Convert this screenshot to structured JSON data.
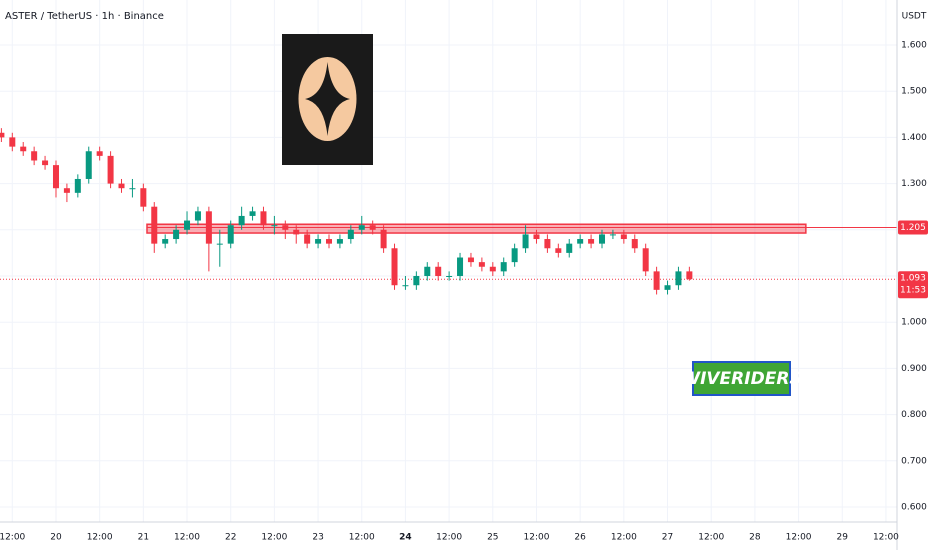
{
  "chart_data": {
    "type": "candlestick",
    "title": "ASTER / TetherUS · 1h · Binance",
    "currency": "USDT",
    "watermark": "WIVERIDERS",
    "up_color": "#089981",
    "down_color": "#f23645",
    "xlim": [
      -15.38,
      231.04
    ],
    "ylim": [
      0.5675,
      1.6974
    ],
    "xticks": [
      {
        "value": -12,
        "label": "12:00"
      },
      {
        "value": 0,
        "label": "20"
      },
      {
        "value": 12,
        "label": "12:00"
      },
      {
        "value": 24,
        "label": "21"
      },
      {
        "value": 36,
        "label": "12:00"
      },
      {
        "value": 48,
        "label": "22"
      },
      {
        "value": 60,
        "label": "12:00"
      },
      {
        "value": 72,
        "label": "23"
      },
      {
        "value": 84,
        "label": "12:00"
      },
      {
        "value": 96,
        "label": "24"
      },
      {
        "value": 108,
        "label": "12:00"
      },
      {
        "value": 120,
        "label": "25"
      },
      {
        "value": 132,
        "label": "12:00"
      },
      {
        "value": 144,
        "label": "26"
      },
      {
        "value": 156,
        "label": "12:00"
      },
      {
        "value": 168,
        "label": "27"
      },
      {
        "value": 180,
        "label": "12:00"
      },
      {
        "value": 192,
        "label": "28"
      },
      {
        "value": 204,
        "label": "12:00"
      },
      {
        "value": 216,
        "label": "29"
      },
      {
        "value": 228,
        "label": "12:00"
      }
    ],
    "yticks": [
      {
        "value": 0.6,
        "label": "0.600"
      },
      {
        "value": 0.7,
        "label": "0.700"
      },
      {
        "value": 0.8,
        "label": "0.800"
      },
      {
        "value": 0.9,
        "label": "0.900"
      },
      {
        "value": 1.0,
        "label": "1.000"
      },
      {
        "value": 1.1,
        "label": "1.100"
      },
      {
        "value": 1.2,
        "label": "1.200"
      },
      {
        "value": 1.3,
        "label": "1.300"
      },
      {
        "value": 1.4,
        "label": "1.400"
      },
      {
        "value": 1.5,
        "label": "1.500"
      },
      {
        "value": 1.6,
        "label": "1.600"
      }
    ],
    "x": [
      -15,
      -12,
      -9,
      -6,
      -3,
      0,
      3,
      6,
      9,
      12,
      15,
      18,
      21,
      24,
      27,
      30,
      33,
      36,
      39,
      42,
      45,
      48,
      51,
      54,
      57,
      60,
      63,
      66,
      69,
      72,
      75,
      78,
      81,
      84,
      87,
      90,
      93,
      96,
      99,
      102,
      105,
      108,
      111,
      114,
      117,
      120,
      123,
      126,
      129,
      132,
      135,
      138,
      141,
      144,
      147,
      150,
      153,
      156,
      159,
      162,
      165,
      168,
      171,
      174
    ],
    "open": [
      1.41,
      1.4,
      1.38,
      1.37,
      1.35,
      1.34,
      1.29,
      1.28,
      1.31,
      1.37,
      1.36,
      1.3,
      1.29,
      1.29,
      1.25,
      1.17,
      1.18,
      1.2,
      1.22,
      1.24,
      1.17,
      1.17,
      1.21,
      1.23,
      1.24,
      1.21,
      1.21,
      1.2,
      1.19,
      1.17,
      1.18,
      1.17,
      1.18,
      1.2,
      1.21,
      1.2,
      1.16,
      1.08,
      1.08,
      1.1,
      1.12,
      1.1,
      1.1,
      1.14,
      1.13,
      1.12,
      1.11,
      1.13,
      1.16,
      1.19,
      1.18,
      1.16,
      1.15,
      1.17,
      1.18,
      1.17,
      1.19,
      1.19,
      1.18,
      1.16,
      1.11,
      1.07,
      1.08,
      1.11
    ],
    "high": [
      1.42,
      1.41,
      1.39,
      1.38,
      1.36,
      1.35,
      1.3,
      1.32,
      1.38,
      1.38,
      1.37,
      1.31,
      1.31,
      1.3,
      1.26,
      1.19,
      1.21,
      1.24,
      1.25,
      1.25,
      1.2,
      1.22,
      1.25,
      1.25,
      1.25,
      1.23,
      1.22,
      1.21,
      1.2,
      1.19,
      1.19,
      1.19,
      1.21,
      1.23,
      1.22,
      1.21,
      1.17,
      1.1,
      1.11,
      1.13,
      1.13,
      1.11,
      1.15,
      1.15,
      1.14,
      1.13,
      1.14,
      1.17,
      1.21,
      1.2,
      1.19,
      1.17,
      1.18,
      1.19,
      1.19,
      1.2,
      1.2,
      1.2,
      1.19,
      1.17,
      1.12,
      1.09,
      1.12,
      1.12
    ],
    "low": [
      1.39,
      1.37,
      1.36,
      1.34,
      1.33,
      1.27,
      1.26,
      1.27,
      1.3,
      1.35,
      1.29,
      1.28,
      1.27,
      1.24,
      1.15,
      1.16,
      1.17,
      1.19,
      1.21,
      1.11,
      1.12,
      1.16,
      1.2,
      1.22,
      1.2,
      1.19,
      1.18,
      1.17,
      1.16,
      1.16,
      1.16,
      1.16,
      1.17,
      1.19,
      1.19,
      1.15,
      1.07,
      1.07,
      1.07,
      1.09,
      1.09,
      1.09,
      1.09,
      1.12,
      1.11,
      1.1,
      1.1,
      1.12,
      1.15,
      1.17,
      1.15,
      1.14,
      1.14,
      1.16,
      1.16,
      1.16,
      1.18,
      1.17,
      1.15,
      1.1,
      1.06,
      1.06,
      1.07,
      1.09
    ],
    "close": [
      1.4,
      1.38,
      1.37,
      1.35,
      1.34,
      1.29,
      1.28,
      1.31,
      1.37,
      1.36,
      1.3,
      1.29,
      1.29,
      1.25,
      1.17,
      1.18,
      1.2,
      1.22,
      1.24,
      1.17,
      1.17,
      1.21,
      1.23,
      1.24,
      1.21,
      1.21,
      1.2,
      1.19,
      1.17,
      1.18,
      1.17,
      1.18,
      1.2,
      1.21,
      1.2,
      1.16,
      1.08,
      1.08,
      1.1,
      1.12,
      1.1,
      1.1,
      1.14,
      1.13,
      1.12,
      1.11,
      1.13,
      1.16,
      1.19,
      1.18,
      1.16,
      1.15,
      1.17,
      1.18,
      1.17,
      1.19,
      1.19,
      1.18,
      1.16,
      1.11,
      1.07,
      1.08,
      1.11,
      1.093
    ],
    "zone": {
      "level": 1.205,
      "range": [
        1.193,
        1.212
      ],
      "x": [
        25,
        206
      ],
      "color": "#f23645"
    },
    "last_price": 1.093,
    "countdown": "11:53"
  }
}
